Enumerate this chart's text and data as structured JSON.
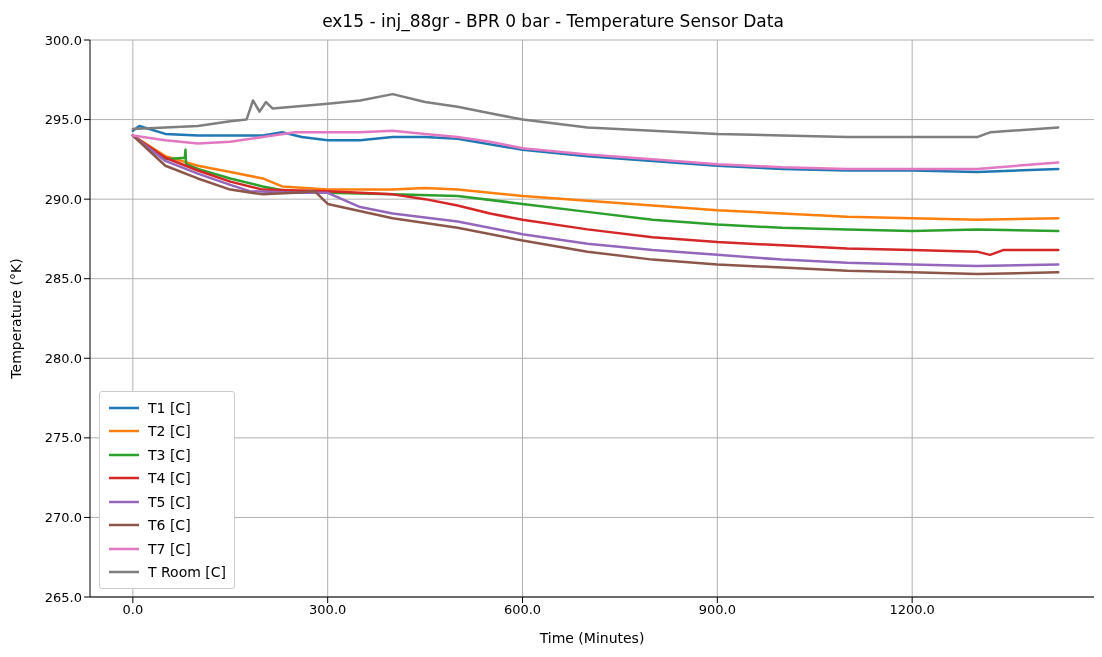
{
  "chart_data": {
    "type": "line",
    "title": "ex15 - inj_88gr - BPR 0 bar - Temperature Sensor Data",
    "xlabel": "Time (Minutes)",
    "ylabel": "Temperature (°K)",
    "xlim": [
      -66,
      1480
    ],
    "ylim": [
      265,
      300
    ],
    "xticks": [
      {
        "value": 0,
        "label": "0.0"
      },
      {
        "value": 300,
        "label": "300.0"
      },
      {
        "value": 600,
        "label": "600.0"
      },
      {
        "value": 900,
        "label": "900.0"
      },
      {
        "value": 1200,
        "label": "1200.0"
      }
    ],
    "yticks": [
      {
        "value": 265,
        "label": "265.0"
      },
      {
        "value": 270,
        "label": "270.0"
      },
      {
        "value": 275,
        "label": "275.0"
      },
      {
        "value": 280,
        "label": "280.0"
      },
      {
        "value": 285,
        "label": "285.0"
      },
      {
        "value": 290,
        "label": "290.0"
      },
      {
        "value": 295,
        "label": "295.0"
      },
      {
        "value": 300,
        "label": "300.0"
      }
    ],
    "grid": true,
    "legend": "bottom left",
    "marker": "none",
    "line_style": "solid",
    "series": [
      {
        "name": "T1 [C]",
        "color": "#1f77b4",
        "x": [
          0,
          10,
          50,
          100,
          200,
          230,
          260,
          300,
          350,
          400,
          450,
          500,
          600,
          700,
          800,
          900,
          1000,
          1100,
          1200,
          1300,
          1425
        ],
        "values": [
          294.3,
          294.6,
          294.1,
          294.0,
          294.0,
          294.2,
          293.9,
          293.7,
          293.7,
          293.9,
          293.9,
          293.8,
          293.1,
          292.7,
          292.4,
          292.1,
          291.9,
          291.8,
          291.8,
          291.7,
          291.9
        ]
      },
      {
        "name": "T2 [C]",
        "color": "#ff7f0e",
        "x": [
          0,
          50,
          100,
          150,
          200,
          230,
          300,
          400,
          450,
          500,
          600,
          700,
          800,
          900,
          1000,
          1100,
          1200,
          1300,
          1425
        ],
        "values": [
          294.0,
          292.7,
          292.1,
          291.7,
          291.3,
          290.8,
          290.6,
          290.6,
          290.7,
          290.6,
          290.2,
          289.9,
          289.6,
          289.3,
          289.1,
          288.9,
          288.8,
          288.7,
          288.8
        ]
      },
      {
        "name": "T3 [C]",
        "color": "#2ca02c",
        "x": [
          0,
          50,
          80,
          81,
          82,
          100,
          150,
          200,
          250,
          300,
          400,
          500,
          600,
          700,
          800,
          900,
          1000,
          1100,
          1200,
          1300,
          1425
        ],
        "values": [
          294.0,
          292.5,
          292.6,
          293.1,
          292.2,
          291.9,
          291.3,
          290.8,
          290.4,
          290.4,
          290.3,
          290.2,
          289.7,
          289.2,
          288.7,
          288.4,
          288.2,
          288.1,
          288.0,
          288.1,
          288.0
        ]
      },
      {
        "name": "T4 [C]",
        "color": "#d62728",
        "x": [
          0,
          50,
          100,
          150,
          200,
          300,
          400,
          450,
          500,
          550,
          600,
          700,
          800,
          900,
          1000,
          1100,
          1200,
          1300,
          1320,
          1340,
          1425
        ],
        "values": [
          294.0,
          292.6,
          291.8,
          291.1,
          290.6,
          290.5,
          290.3,
          290.0,
          289.6,
          289.1,
          288.7,
          288.1,
          287.6,
          287.3,
          287.1,
          286.9,
          286.8,
          286.7,
          286.5,
          286.8,
          286.8
        ]
      },
      {
        "name": "T5 [C]",
        "color": "#9467bd",
        "x": [
          0,
          50,
          100,
          150,
          180,
          250,
          300,
          350,
          400,
          500,
          600,
          700,
          800,
          900,
          1000,
          1100,
          1200,
          1300,
          1425
        ],
        "values": [
          294.0,
          292.4,
          291.6,
          290.9,
          290.5,
          290.4,
          290.4,
          289.5,
          289.1,
          288.6,
          287.8,
          287.2,
          286.8,
          286.5,
          286.2,
          286.0,
          285.9,
          285.8,
          285.9
        ]
      },
      {
        "name": "T6 [C]",
        "color": "#8c564b",
        "x": [
          0,
          50,
          100,
          150,
          200,
          250,
          280,
          300,
          400,
          500,
          600,
          700,
          800,
          900,
          1000,
          1100,
          1200,
          1300,
          1425
        ],
        "values": [
          294.0,
          292.1,
          291.3,
          290.6,
          290.3,
          290.4,
          290.5,
          289.7,
          288.8,
          288.2,
          287.4,
          286.7,
          286.2,
          285.9,
          285.7,
          285.5,
          285.4,
          285.3,
          285.4
        ]
      },
      {
        "name": "T7 [C]",
        "color": "#e377c2",
        "x": [
          0,
          50,
          100,
          150,
          200,
          250,
          300,
          350,
          400,
          450,
          500,
          550,
          600,
          700,
          800,
          900,
          1000,
          1100,
          1200,
          1300,
          1425
        ],
        "values": [
          294.0,
          293.7,
          293.5,
          293.6,
          293.9,
          294.2,
          294.2,
          294.2,
          294.3,
          294.1,
          293.9,
          293.6,
          293.2,
          292.8,
          292.5,
          292.2,
          292.0,
          291.9,
          291.9,
          291.9,
          292.3
        ]
      },
      {
        "name": "T Room [C]",
        "color": "#7f7f7f",
        "x": [
          0,
          50,
          100,
          150,
          175,
          185,
          195,
          205,
          215,
          300,
          350,
          400,
          450,
          500,
          550,
          600,
          700,
          800,
          900,
          1000,
          1100,
          1200,
          1300,
          1320,
          1425
        ],
        "values": [
          294.4,
          294.5,
          294.6,
          294.9,
          295.0,
          296.2,
          295.5,
          296.1,
          295.7,
          296.0,
          296.2,
          296.6,
          296.1,
          295.8,
          295.4,
          295.0,
          294.5,
          294.3,
          294.1,
          294.0,
          293.9,
          293.9,
          293.9,
          294.2,
          294.5
        ]
      }
    ]
  }
}
